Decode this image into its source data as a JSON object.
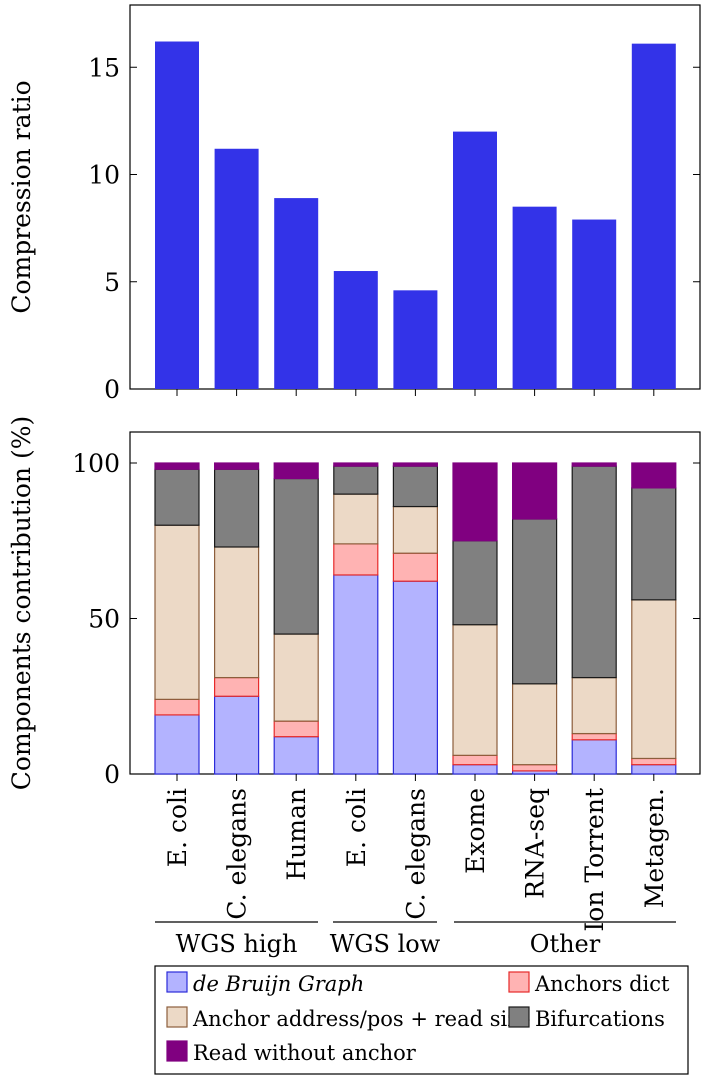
{
  "chart_data": [
    {
      "type": "bar",
      "title": "",
      "xlabel": "",
      "ylabel": "Compression ratio",
      "ylim": [
        0,
        17
      ],
      "yticks": [
        "0",
        "5",
        "10",
        "15"
      ],
      "categories": [
        "E. coli",
        "C. elegans",
        "Human",
        "E. coli",
        "C. elegans",
        "Exome",
        "RNA-seq",
        "Ion Torrent",
        "Metagen."
      ],
      "values": [
        16.2,
        11.2,
        8.9,
        5.5,
        4.6,
        12.0,
        8.5,
        7.9,
        16.1
      ],
      "color": "#3333e8"
    },
    {
      "type": "bar",
      "stacked": true,
      "title": "",
      "xlabel": "",
      "ylabel": "Components contribution (%)",
      "ylim": [
        0,
        100
      ],
      "yticks": [
        "0",
        "50",
        "100"
      ],
      "categories": [
        "E. coli",
        "C. elegans",
        "Human",
        "E. coli",
        "C. elegans",
        "Exome",
        "RNA-seq",
        "Ion Torrent",
        "Metagen."
      ],
      "groups": [
        {
          "label": "WGS high",
          "categories": [
            0,
            1,
            2
          ]
        },
        {
          "label": "WGS low",
          "categories": [
            3,
            4
          ]
        },
        {
          "label": "Other",
          "categories": [
            5,
            6,
            7,
            8
          ]
        }
      ],
      "series": [
        {
          "name": "de Bruijn Graph",
          "fill": "#b3b3ff",
          "stroke": "#2b2bd9",
          "values": [
            19,
            25,
            12,
            64,
            62,
            3,
            1,
            11,
            3
          ]
        },
        {
          "name": "Anchors dict",
          "fill": "#ffb3b3",
          "stroke": "#e62a2a",
          "values": [
            5,
            6,
            5,
            10,
            9,
            3,
            2,
            2,
            2
          ]
        },
        {
          "name": "Anchor address/pos + read size",
          "fill": "#ecd9c6",
          "stroke": "#8c5e3c",
          "values": [
            56,
            42,
            28,
            16,
            15,
            42,
            26,
            18,
            51
          ]
        },
        {
          "name": "Bifurcations",
          "fill": "#808080",
          "stroke": "#1a1a1a",
          "values": [
            18,
            25,
            50,
            9,
            13,
            27,
            53,
            68,
            36
          ]
        },
        {
          "name": "Read without anchor",
          "fill": "#800080",
          "stroke": "#800080",
          "values": [
            2,
            2,
            5,
            1,
            1,
            25,
            18,
            1,
            8
          ]
        }
      ]
    }
  ]
}
